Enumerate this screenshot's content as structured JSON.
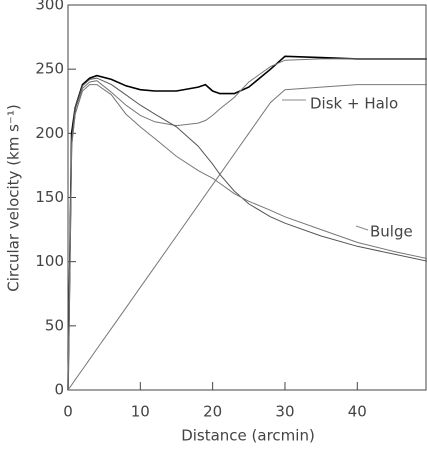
{
  "chart_data": {
    "type": "line",
    "xlabel": "Distance (arcmin)",
    "ylabel": "Circular velocity (km s⁻¹)",
    "annotations": [
      "Disk + Halo",
      "Bulge"
    ],
    "xlim": [
      0,
      49.5
    ],
    "ylim": [
      0,
      300
    ],
    "xticks": [
      0,
      10,
      20,
      30,
      40
    ],
    "yticks": [
      0,
      50,
      100,
      150,
      200,
      250,
      300
    ],
    "x": [
      0,
      0.5,
      1,
      2,
      3,
      4,
      6,
      8,
      10,
      12,
      15,
      18,
      19,
      20,
      21,
      23,
      25,
      28,
      30,
      35,
      40,
      45,
      50
    ],
    "series": [
      {
        "color": "#000000",
        "values": [
          0,
          200,
          220,
          238,
          243,
          245,
          242,
          237,
          234,
          233,
          233,
          236,
          238,
          233,
          231,
          231,
          236,
          250,
          260,
          259,
          258,
          258,
          258
        ]
      },
      {
        "color": "#777777",
        "values": [
          0,
          4,
          8,
          16,
          24,
          32,
          48,
          64,
          80,
          96,
          120,
          144,
          152,
          160,
          168,
          184,
          200,
          224,
          234,
          236,
          238,
          238,
          238
        ]
      },
      {
        "color": "#777777",
        "values": [
          0,
          190,
          215,
          235,
          240,
          241,
          232,
          222,
          214,
          209,
          206,
          208,
          210,
          214,
          219,
          228,
          240,
          252,
          257,
          258,
          258,
          258,
          258
        ]
      },
      {
        "color": "#555555",
        "values": [
          0,
          195,
          220,
          237,
          242,
          243,
          238,
          230,
          222,
          215,
          205,
          190,
          183,
          176,
          168,
          155,
          145,
          135,
          130,
          120,
          112,
          106,
          100
        ]
      },
      {
        "color": "#777777",
        "values": [
          0,
          190,
          215,
          233,
          238,
          238,
          230,
          215,
          205,
          196,
          182,
          171,
          168,
          165,
          161,
          153,
          147,
          140,
          135,
          125,
          115,
          108,
          102
        ]
      }
    ]
  }
}
